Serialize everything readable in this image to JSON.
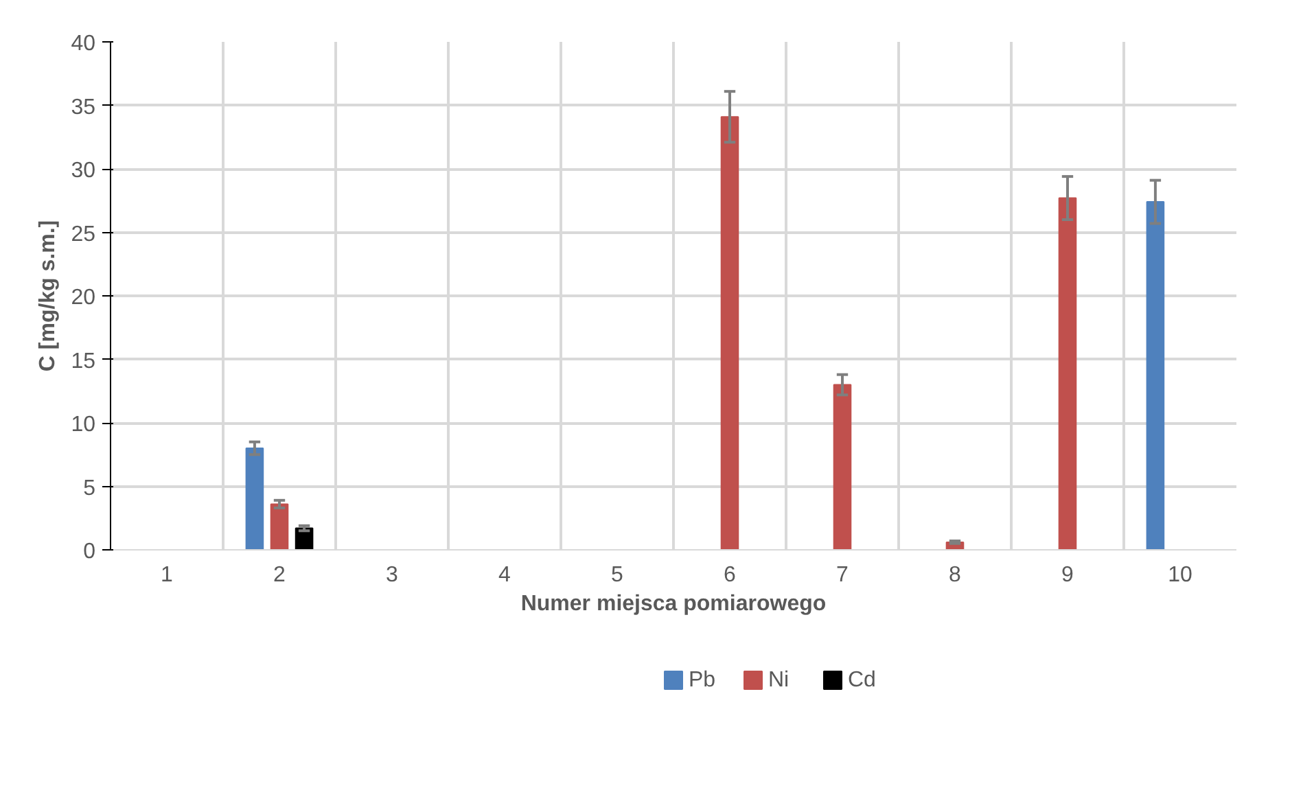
{
  "chart_data": {
    "type": "bar",
    "xlabel": "Numer miejsca pomiarowego",
    "ylabel": "C [mg/kg s.m.]",
    "categories": [
      "1",
      "2",
      "3",
      "4",
      "5",
      "6",
      "7",
      "8",
      "9",
      "10"
    ],
    "ylim": [
      0,
      40
    ],
    "yticks": [
      0,
      5,
      10,
      15,
      20,
      25,
      30,
      35,
      40
    ],
    "grid": true,
    "legend": "bottom",
    "series": [
      {
        "name": "Pb",
        "color": "#4f81bd",
        "values": [
          null,
          8.0,
          null,
          null,
          null,
          null,
          null,
          null,
          null,
          27.4
        ],
        "errors": [
          null,
          0.5,
          null,
          null,
          null,
          null,
          null,
          null,
          null,
          1.7
        ]
      },
      {
        "name": "Ni",
        "color": "#c0504d",
        "values": [
          null,
          3.6,
          null,
          null,
          null,
          34.1,
          13.0,
          0.6,
          27.7,
          null
        ],
        "errors": [
          null,
          0.3,
          null,
          null,
          null,
          2.0,
          0.8,
          0.1,
          1.7,
          null
        ]
      },
      {
        "name": "Cd",
        "color": "#000000",
        "values": [
          null,
          1.7,
          null,
          null,
          null,
          null,
          null,
          null,
          null,
          null
        ],
        "errors": [
          null,
          0.2,
          null,
          null,
          null,
          null,
          null,
          null,
          null,
          null
        ]
      }
    ]
  }
}
